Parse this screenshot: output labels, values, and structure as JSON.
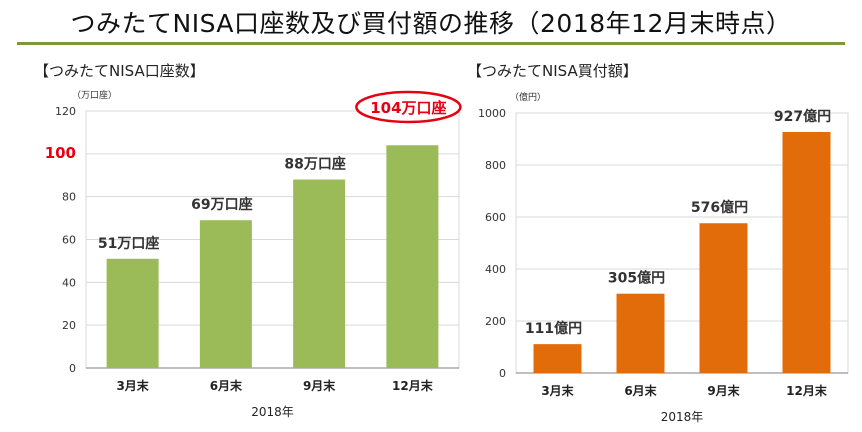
{
  "page": {
    "title": "つみたてNISA口座数及び買付額の推移（2018年12月末時点）"
  },
  "chart_data": [
    {
      "type": "bar",
      "title": "【つみたてNISA口座数】",
      "unit": "（万口座）",
      "xlabel": "2018年",
      "categories": [
        "3月末",
        "6月末",
        "9月末",
        "12月末"
      ],
      "values": [
        51,
        69,
        88,
        104
      ],
      "data_labels": [
        "51万口座",
        "69万口座",
        "88万口座",
        "104万口座"
      ],
      "ylim": [
        0,
        120
      ],
      "yticks": [
        0,
        20,
        40,
        60,
        80,
        100,
        120
      ],
      "highlight_tick": 100,
      "highlight_label_index": 3,
      "grid": true,
      "colors": {
        "bar": "#9bbb59",
        "highlight": "#e60012",
        "grid": "#d9d9d9"
      }
    },
    {
      "type": "bar",
      "title": "【つみたてNISA買付額】",
      "unit": "（億円）",
      "xlabel": "2018年",
      "categories": [
        "3月末",
        "6月末",
        "9月末",
        "12月末"
      ],
      "values": [
        111,
        305,
        576,
        927
      ],
      "data_labels": [
        "111億円",
        "305億円",
        "576億円",
        "927億円"
      ],
      "ylim": [
        0,
        1000
      ],
      "yticks": [
        0,
        200,
        400,
        600,
        800,
        1000
      ],
      "grid": true,
      "colors": {
        "bar": "#e36c0a",
        "grid": "#d9d9d9"
      }
    }
  ],
  "colors": {
    "title_rule": "#7a9a3a",
    "background": "#ffffff"
  }
}
